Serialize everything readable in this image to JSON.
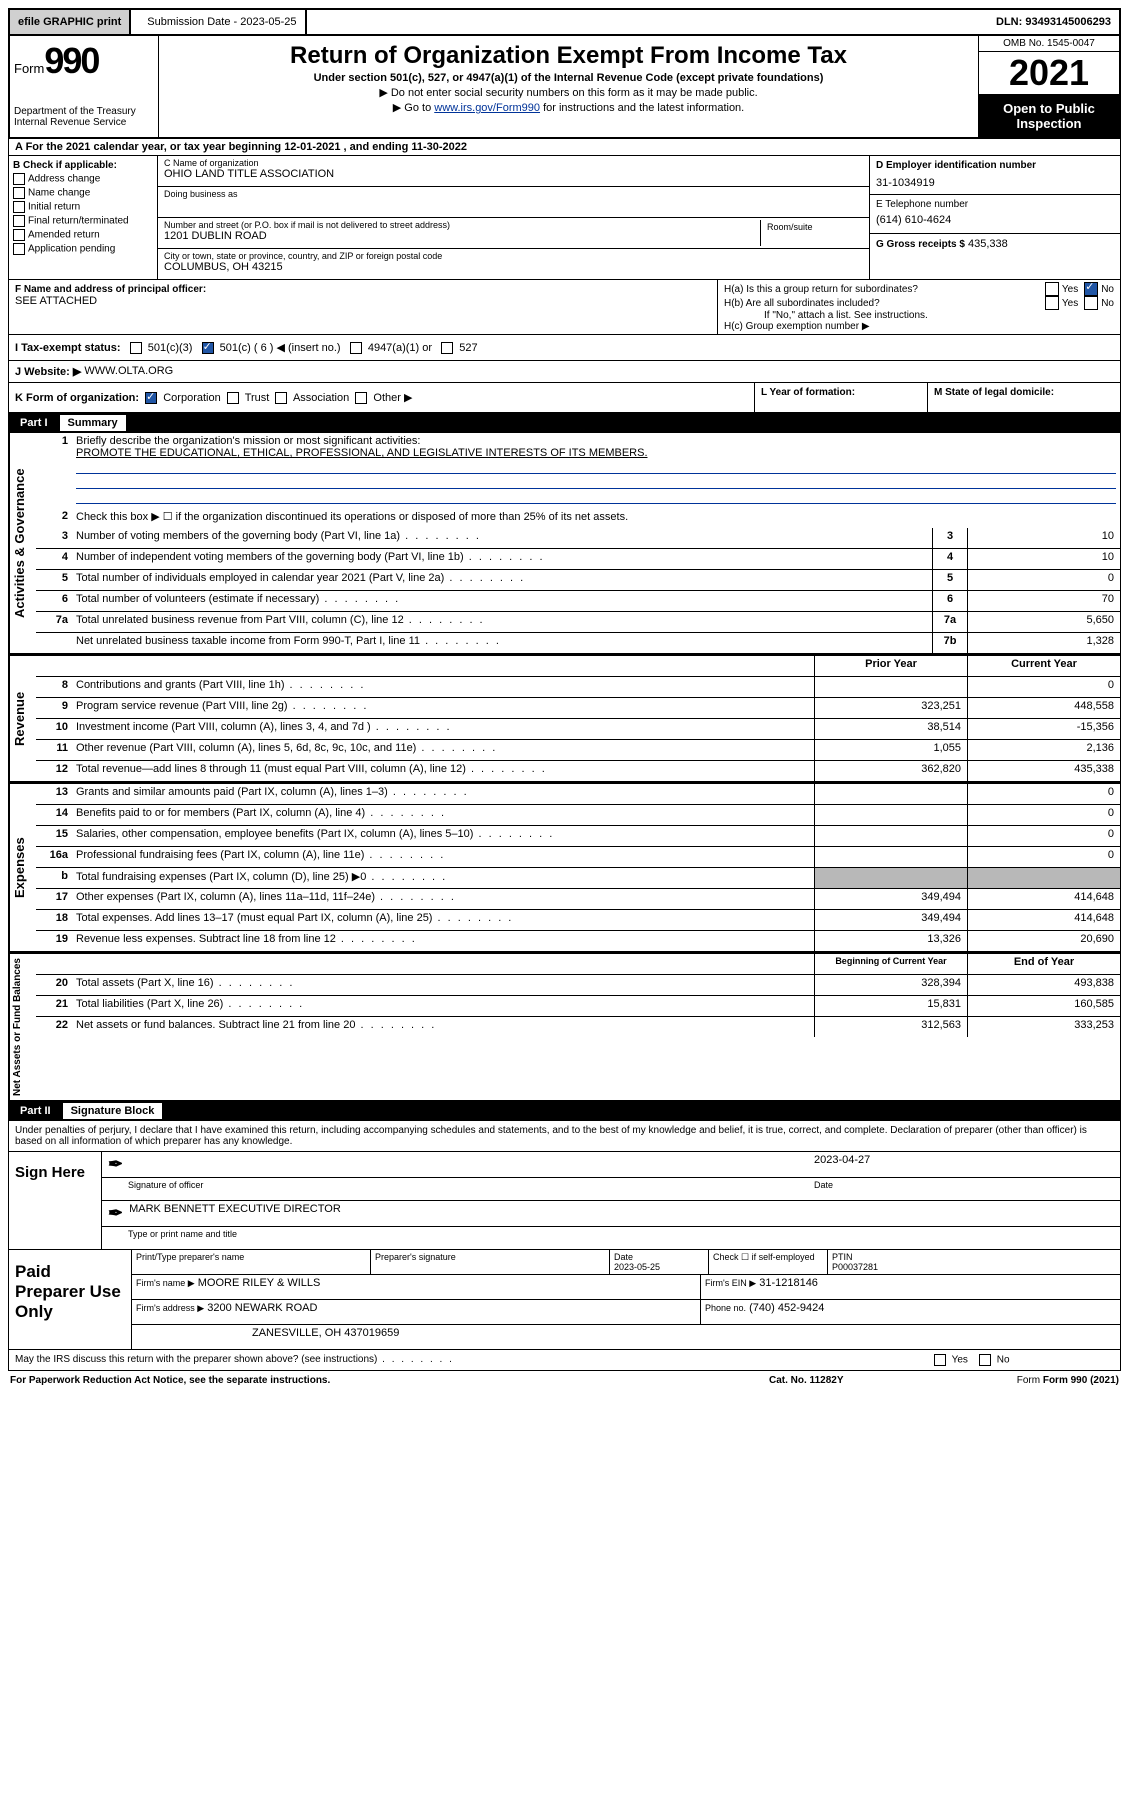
{
  "top": {
    "efile": "efile GRAPHIC print",
    "sub_label": "Submission Date - 2023-05-25",
    "dln": "DLN: 93493145006293"
  },
  "header": {
    "form_word": "Form",
    "form_num": "990",
    "title": "Return of Organization Exempt From Income Tax",
    "sub": "Under section 501(c), 527, or 4947(a)(1) of the Internal Revenue Code (except private foundations)",
    "note1": "▶ Do not enter social security numbers on this form as it may be made public.",
    "note2_pre": "▶ Go to ",
    "note2_link": "www.irs.gov/Form990",
    "note2_post": " for instructions and the latest information.",
    "dept": "Department of the Treasury\nInternal Revenue Service",
    "omb": "OMB No. 1545-0047",
    "year": "2021",
    "open": "Open to Public Inspection"
  },
  "row_a": "A For the 2021 calendar year, or tax year beginning 12-01-2021   , and ending 11-30-2022",
  "box_b": {
    "title": "B Check if applicable:",
    "items": [
      "Address change",
      "Name change",
      "Initial return",
      "Final return/terminated",
      "Amended return",
      "Application pending"
    ]
  },
  "box_c": {
    "name_lbl": "C Name of organization",
    "name_val": "OHIO LAND TITLE ASSOCIATION",
    "dba_lbl": "Doing business as",
    "dba_val": "",
    "addr_lbl": "Number and street (or P.O. box if mail is not delivered to street address)",
    "room_lbl": "Room/suite",
    "addr_val": "1201 DUBLIN ROAD",
    "city_lbl": "City or town, state or province, country, and ZIP or foreign postal code",
    "city_val": "COLUMBUS, OH  43215"
  },
  "box_d": {
    "ein_lbl": "D Employer identification number",
    "ein_val": "31-1034919",
    "tel_lbl": "E Telephone number",
    "tel_val": "(614) 610-4624",
    "gross_lbl": "G Gross receipts $",
    "gross_val": "435,338"
  },
  "box_f": {
    "lbl": "F Name and address of principal officer:",
    "val": "SEE ATTACHED"
  },
  "box_h": {
    "ha": "H(a)  Is this a group return for subordinates?",
    "hb": "H(b)  Are all subordinates included?",
    "hb_note": "If \"No,\" attach a list. See instructions.",
    "hc": "H(c)  Group exemption number ▶"
  },
  "row_i": {
    "lbl": "I   Tax-exempt status:",
    "opts": [
      "501(c)(3)",
      "501(c) ( 6 ) ◀ (insert no.)",
      "4947(a)(1) or",
      "527"
    ]
  },
  "row_j": {
    "lbl": "J   Website: ▶",
    "val": "WWW.OLTA.ORG"
  },
  "row_k": {
    "lbl": "K Form of organization:",
    "opts": [
      "Corporation",
      "Trust",
      "Association",
      "Other ▶"
    ],
    "l_lbl": "L Year of formation:",
    "m_lbl": "M State of legal domicile:"
  },
  "part1": {
    "num": "Part I",
    "title": "Summary",
    "vlabels": [
      "Activities & Governance",
      "Revenue",
      "Expenses",
      "Net Assets or Fund Balances"
    ],
    "l1": "Briefly describe the organization's mission or most significant activities:",
    "l1v": "PROMOTE THE EDUCATIONAL, ETHICAL, PROFESSIONAL, AND LEGISLATIVE INTERESTS OF ITS MEMBERS.",
    "l2": "Check this box ▶ ☐  if the organization discontinued its operations or disposed of more than 25% of its net assets.",
    "lines_gov": [
      {
        "n": "3",
        "t": "Number of voting members of the governing body (Part VI, line 1a)",
        "b": "3",
        "v": "10"
      },
      {
        "n": "4",
        "t": "Number of independent voting members of the governing body (Part VI, line 1b)",
        "b": "4",
        "v": "10"
      },
      {
        "n": "5",
        "t": "Total number of individuals employed in calendar year 2021 (Part V, line 2a)",
        "b": "5",
        "v": "0"
      },
      {
        "n": "6",
        "t": "Total number of volunteers (estimate if necessary)",
        "b": "6",
        "v": "70"
      },
      {
        "n": "7a",
        "t": "Total unrelated business revenue from Part VIII, column (C), line 12",
        "b": "7a",
        "v": "5,650"
      },
      {
        "n": "",
        "t": "Net unrelated business taxable income from Form 990-T, Part I, line 11",
        "b": "7b",
        "v": "1,328"
      }
    ],
    "hdr_prior": "Prior Year",
    "hdr_curr": "Current Year",
    "lines_rev": [
      {
        "n": "8",
        "t": "Contributions and grants (Part VIII, line 1h)",
        "p": "",
        "c": "0"
      },
      {
        "n": "9",
        "t": "Program service revenue (Part VIII, line 2g)",
        "p": "323,251",
        "c": "448,558"
      },
      {
        "n": "10",
        "t": "Investment income (Part VIII, column (A), lines 3, 4, and 7d )",
        "p": "38,514",
        "c": "-15,356"
      },
      {
        "n": "11",
        "t": "Other revenue (Part VIII, column (A), lines 5, 6d, 8c, 9c, 10c, and 11e)",
        "p": "1,055",
        "c": "2,136"
      },
      {
        "n": "12",
        "t": "Total revenue—add lines 8 through 11 (must equal Part VIII, column (A), line 12)",
        "p": "362,820",
        "c": "435,338"
      }
    ],
    "lines_exp": [
      {
        "n": "13",
        "t": "Grants and similar amounts paid (Part IX, column (A), lines 1–3)",
        "p": "",
        "c": "0"
      },
      {
        "n": "14",
        "t": "Benefits paid to or for members (Part IX, column (A), line 4)",
        "p": "",
        "c": "0"
      },
      {
        "n": "15",
        "t": "Salaries, other compensation, employee benefits (Part IX, column (A), lines 5–10)",
        "p": "",
        "c": "0"
      },
      {
        "n": "16a",
        "t": "Professional fundraising fees (Part IX, column (A), line 11e)",
        "p": "",
        "c": "0"
      },
      {
        "n": "b",
        "t": "Total fundraising expenses (Part IX, column (D), line 25) ▶0",
        "p": "shade",
        "c": "shade"
      },
      {
        "n": "17",
        "t": "Other expenses (Part IX, column (A), lines 11a–11d, 11f–24e)",
        "p": "349,494",
        "c": "414,648"
      },
      {
        "n": "18",
        "t": "Total expenses. Add lines 13–17 (must equal Part IX, column (A), line 25)",
        "p": "349,494",
        "c": "414,648"
      },
      {
        "n": "19",
        "t": "Revenue less expenses. Subtract line 18 from line 12",
        "p": "13,326",
        "c": "20,690"
      }
    ],
    "hdr_beg": "Beginning of Current Year",
    "hdr_end": "End of Year",
    "lines_net": [
      {
        "n": "20",
        "t": "Total assets (Part X, line 16)",
        "p": "328,394",
        "c": "493,838"
      },
      {
        "n": "21",
        "t": "Total liabilities (Part X, line 26)",
        "p": "15,831",
        "c": "160,585"
      },
      {
        "n": "22",
        "t": "Net assets or fund balances. Subtract line 21 from line 20",
        "p": "312,563",
        "c": "333,253"
      }
    ]
  },
  "part2": {
    "num": "Part II",
    "title": "Signature Block",
    "decl": "Under penalties of perjury, I declare that I have examined this return, including accompanying schedules and statements, and to the best of my knowledge and belief, it is true, correct, and complete. Declaration of preparer (other than officer) is based on all information of which preparer has any knowledge.",
    "sign_here": "Sign Here",
    "sig_off": "Signature of officer",
    "sig_date_lbl": "Date",
    "sig_date": "2023-04-27",
    "officer": "MARK BENNETT  EXECUTIVE DIRECTOR",
    "officer_lbl": "Type or print name and title",
    "paid": "Paid Preparer Use Only",
    "prep_hdrs": [
      "Print/Type preparer's name",
      "Preparer's signature",
      "Date",
      "",
      "PTIN"
    ],
    "prep_date": "2023-05-25",
    "prep_check": "Check ☐ if self-employed",
    "ptin": "P00037281",
    "firm_name_lbl": "Firm's name    ▶",
    "firm_name": "MOORE RILEY & WILLS",
    "firm_ein_lbl": "Firm's EIN ▶",
    "firm_ein": "31-1218146",
    "firm_addr_lbl": "Firm's address ▶",
    "firm_addr1": "3200 NEWARK ROAD",
    "firm_addr2": "ZANESVILLE, OH  437019659",
    "phone_lbl": "Phone no.",
    "phone": "(740) 452-9424",
    "discuss": "May the IRS discuss this return with the preparer shown above? (see instructions)"
  },
  "footer": {
    "left": "For Paperwork Reduction Act Notice, see the separate instructions.",
    "mid": "Cat. No. 11282Y",
    "right": "Form 990 (2021)"
  }
}
